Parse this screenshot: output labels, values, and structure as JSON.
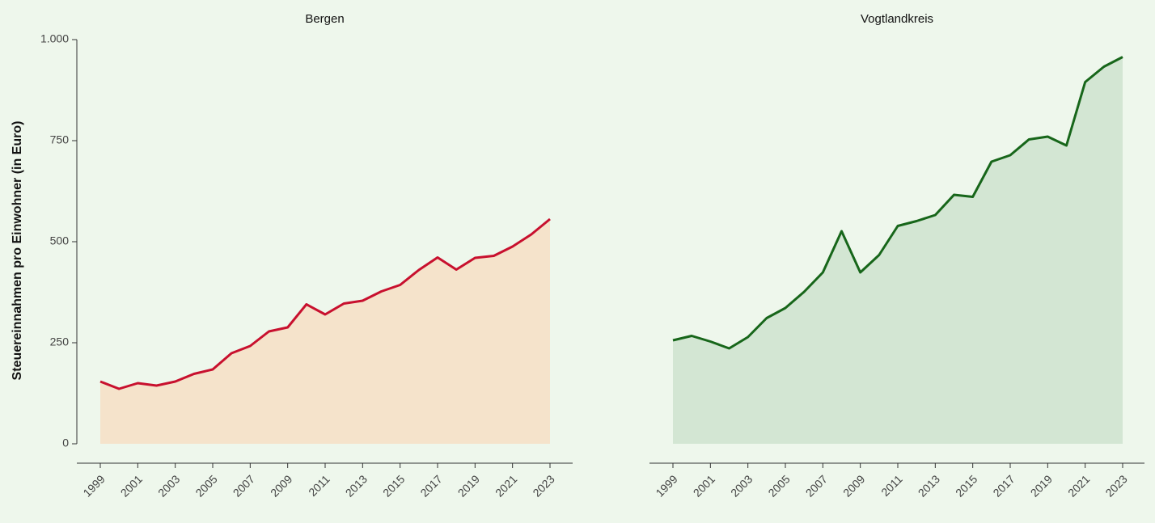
{
  "chart_data": [
    {
      "type": "area",
      "title": "Bergen",
      "ylabel": "Steuereinnahmen pro Einwohner (in Euro)",
      "x": [
        1999,
        2000,
        2001,
        2002,
        2003,
        2004,
        2005,
        2006,
        2007,
        2008,
        2009,
        2010,
        2011,
        2012,
        2013,
        2014,
        2015,
        2016,
        2017,
        2018,
        2019,
        2020,
        2021,
        2022,
        2023
      ],
      "series": [
        {
          "name": "Bergen",
          "color": "#c8102e",
          "fill": "#f5e3cb",
          "values": [
            154,
            136,
            150,
            144,
            154,
            173,
            184,
            224,
            242,
            278,
            288,
            345,
            320,
            347,
            354,
            377,
            393,
            430,
            461,
            431,
            460,
            465,
            488,
            518,
            556
          ]
        }
      ],
      "xlim": [
        1999,
        2023
      ],
      "xticks": [
        1999,
        2001,
        2003,
        2005,
        2007,
        2009,
        2011,
        2013,
        2015,
        2017,
        2019,
        2021,
        2023
      ],
      "ylim": [
        0,
        1000
      ],
      "yticks": [
        0,
        250,
        500,
        750,
        {
          "value": 1000,
          "label": "1.000"
        }
      ]
    },
    {
      "type": "area",
      "title": "Vogtlandkreis",
      "x": [
        1999,
        2000,
        2001,
        2002,
        2003,
        2004,
        2005,
        2006,
        2007,
        2008,
        2009,
        2010,
        2011,
        2012,
        2013,
        2014,
        2015,
        2016,
        2017,
        2018,
        2019,
        2020,
        2021,
        2022,
        2023
      ],
      "series": [
        {
          "name": "Vogtlandkreis",
          "color": "#17661a",
          "fill": "#d3e6d3",
          "values": [
            256,
            267,
            253,
            236,
            264,
            311,
            336,
            376,
            424,
            526,
            424,
            467,
            539,
            551,
            566,
            616,
            611,
            698,
            714,
            753,
            760,
            738,
            895,
            933,
            957
          ]
        }
      ],
      "xlim": [
        1999,
        2023
      ],
      "xticks": [
        1999,
        2001,
        2003,
        2005,
        2007,
        2009,
        2011,
        2013,
        2015,
        2017,
        2019,
        2021,
        2023
      ],
      "ylim": [
        0,
        1000
      ]
    }
  ]
}
